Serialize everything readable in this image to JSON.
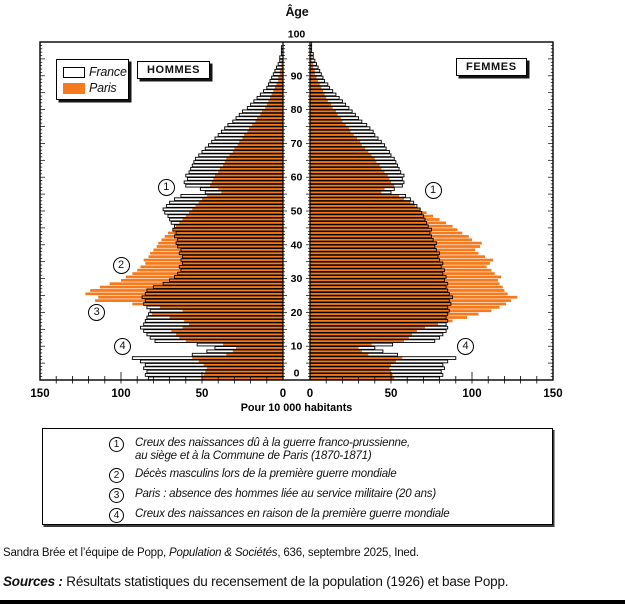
{
  "header": {
    "hommes_label": "HOMMES",
    "femmes_label": "FEMMES"
  },
  "legend": {
    "france": "France",
    "paris": "Paris"
  },
  "axis": {
    "age_title": "Âge",
    "x_label": "Pour 10 000 habitants",
    "age_ticks": [
      0,
      10,
      20,
      30,
      40,
      50,
      60,
      70,
      80,
      90,
      100
    ],
    "value_ticks_left": [
      150,
      100,
      50,
      0
    ],
    "value_ticks_right": [
      0,
      50,
      100,
      150
    ]
  },
  "chart_data": {
    "type": "bar",
    "subtype": "population_pyramid",
    "unit": "Pour 10 000 habitants",
    "age_min": 0,
    "age_max": 100,
    "xlim": [
      -150,
      150
    ],
    "colors": {
      "paris_fill": "#f5791d",
      "france_stroke": "#000000",
      "france_fill": "none"
    },
    "series": [
      {
        "name": "France",
        "sex": "hommes",
        "values": [
          83,
          85,
          84,
          86,
          85,
          88,
          93,
          56,
          47,
          42,
          53,
          79,
          82,
          84,
          86,
          88,
          86,
          85,
          84,
          83,
          82,
          84,
          86,
          85,
          87,
          85,
          84,
          80,
          74,
          70,
          67,
          65,
          63,
          64,
          62,
          63,
          62,
          64,
          63,
          65,
          66,
          65,
          67,
          66,
          68,
          67,
          69,
          70,
          71,
          73,
          74,
          72,
          70,
          67,
          63,
          48,
          51,
          60,
          61,
          59,
          60,
          58,
          57,
          56,
          55,
          54,
          52,
          50,
          48,
          46,
          44,
          42,
          40,
          38,
          36,
          34,
          31,
          29,
          27,
          25,
          22,
          20,
          18,
          16,
          14,
          12,
          10,
          9,
          8,
          7,
          6,
          5,
          4,
          3,
          2,
          2,
          1,
          1,
          1,
          0,
          0
        ]
      },
      {
        "name": "Paris",
        "sex": "hommes",
        "values": [
          50,
          49,
          48,
          47,
          49,
          52,
          56,
          35,
          31,
          29,
          37,
          60,
          64,
          66,
          69,
          62,
          58,
          61,
          70,
          81,
          62,
          76,
          93,
          116,
          114,
          122,
          119,
          113,
          107,
          100,
          97,
          93,
          90,
          88,
          85,
          86,
          83,
          82,
          80,
          78,
          77,
          75,
          73,
          71,
          68,
          66,
          64,
          62,
          60,
          58,
          56,
          54,
          52,
          50,
          47,
          38,
          40,
          45,
          44,
          43,
          42,
          40,
          39,
          37,
          36,
          35,
          33,
          31,
          30,
          28,
          27,
          25,
          24,
          22,
          21,
          19,
          17,
          16,
          14,
          13,
          11,
          10,
          9,
          8,
          7,
          6,
          5,
          4,
          3,
          3,
          2,
          2,
          1,
          1,
          1,
          0,
          0,
          0,
          0,
          0,
          0
        ]
      },
      {
        "name": "France",
        "sex": "femmes",
        "values": [
          80,
          82,
          81,
          83,
          82,
          85,
          90,
          54,
          45,
          40,
          51,
          77,
          80,
          82,
          84,
          85,
          84,
          85,
          84,
          85,
          86,
          85,
          87,
          86,
          88,
          86,
          85,
          84,
          85,
          83,
          84,
          82,
          83,
          81,
          82,
          80,
          79,
          80,
          78,
          77,
          78,
          76,
          75,
          74,
          75,
          73,
          72,
          71,
          70,
          69,
          68,
          66,
          64,
          62,
          59,
          50,
          52,
          57,
          58,
          57,
          58,
          56,
          55,
          54,
          53,
          52,
          50,
          49,
          47,
          46,
          44,
          42,
          40,
          39,
          37,
          35,
          32,
          30,
          28,
          26,
          24,
          22,
          20,
          18,
          16,
          14,
          12,
          11,
          9,
          8,
          7,
          6,
          5,
          4,
          3,
          2,
          2,
          1,
          1,
          1,
          0
        ]
      },
      {
        "name": "Paris",
        "sex": "femmes",
        "values": [
          52,
          51,
          50,
          49,
          50,
          53,
          57,
          36,
          32,
          30,
          38,
          58,
          61,
          63,
          66,
          71,
          79,
          88,
          97,
          104,
          112,
          117,
          121,
          124,
          128,
          122,
          120,
          119,
          117,
          116,
          118,
          114,
          112,
          109,
          111,
          113,
          108,
          104,
          102,
          105,
          106,
          100,
          98,
          94,
          91,
          88,
          84,
          80,
          76,
          72,
          68,
          65,
          62,
          58,
          55,
          44,
          46,
          52,
          50,
          49,
          48,
          46,
          44,
          43,
          41,
          40,
          38,
          36,
          34,
          32,
          31,
          29,
          27,
          25,
          24,
          22,
          20,
          19,
          17,
          16,
          14,
          13,
          11,
          10,
          9,
          8,
          7,
          6,
          5,
          4,
          3,
          3,
          2,
          2,
          1,
          1,
          1,
          0,
          0,
          0,
          0
        ]
      }
    ]
  },
  "callouts": [
    {
      "num": "1",
      "side": "left",
      "age": 57,
      "value": 72
    },
    {
      "num": "2",
      "side": "left",
      "age": 34,
      "value": 100
    },
    {
      "num": "3",
      "side": "left",
      "age": 20,
      "value": 115
    },
    {
      "num": "4",
      "side": "left",
      "age": 10,
      "value": 99
    },
    {
      "num": "1",
      "side": "right",
      "age": 56,
      "value": 76
    },
    {
      "num": "4",
      "side": "right",
      "age": 10,
      "value": 96
    }
  ],
  "notes": {
    "items": [
      {
        "num": "1",
        "lines": [
          "Creux des naissances dû à la guerre franco-prussienne,",
          "au siège et à la Commune de Paris (1870-1871)"
        ]
      },
      {
        "num": "2",
        "lines": [
          "Décès masculins lors de la première guerre mondiale"
        ]
      },
      {
        "num": "3",
        "lines": [
          "Paris : absence des hommes liée au service militaire (20 ans)"
        ]
      },
      {
        "num": "4",
        "lines": [
          "Creux des naissances en raison de la première guerre mondiale"
        ]
      }
    ]
  },
  "footer": {
    "credit_prefix": "Sandra Brée et l’équipe de Popp, ",
    "journal": "Population & Sociétés",
    "credit_suffix": ", 636, septembre 2025, Ined.",
    "sources_label": "Sources : ",
    "sources_text": "Résultats statistiques du recensement de la population (1926) et base Popp."
  }
}
